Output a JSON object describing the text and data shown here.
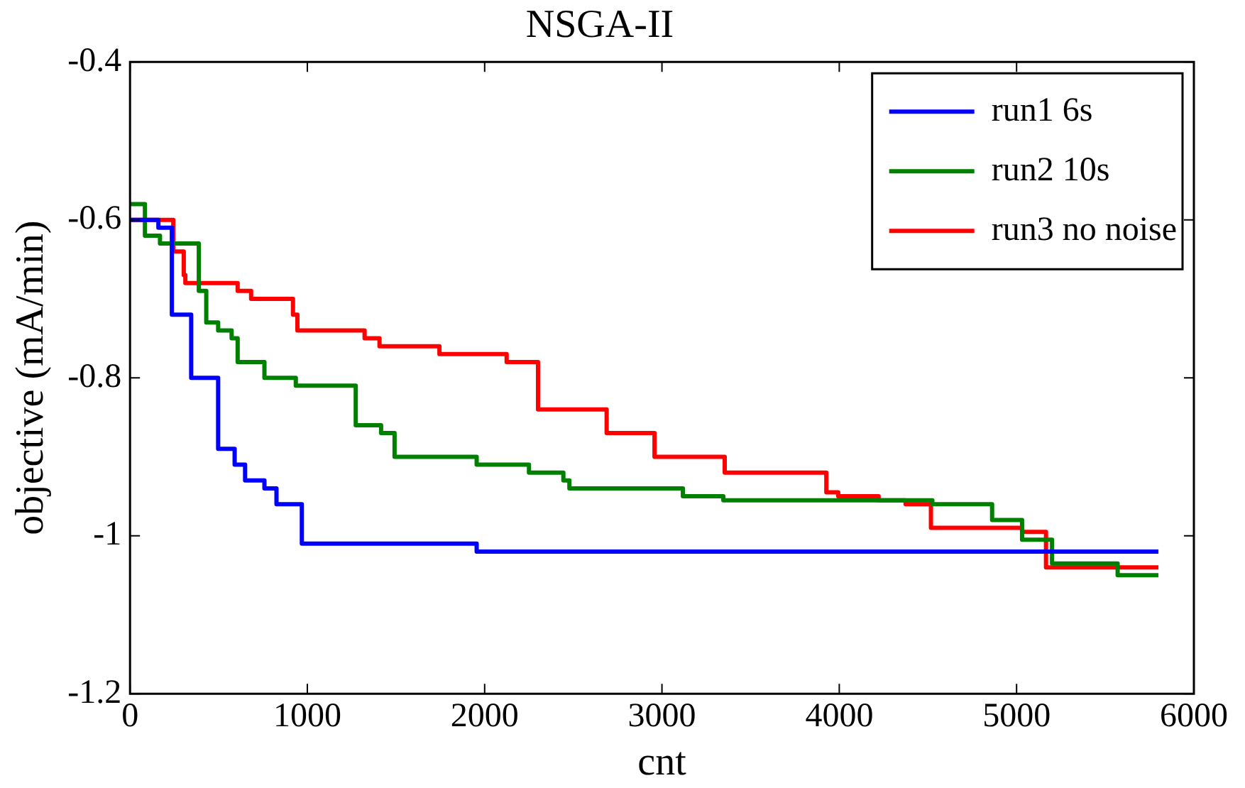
{
  "chart_data": {
    "type": "step",
    "title": "NSGA-II",
    "xlabel": "cnt",
    "ylabel": "objective (mA/min)",
    "xlim": [
      0,
      6000
    ],
    "xticks": [
      0,
      1000,
      2000,
      3000,
      4000,
      5000,
      6000
    ],
    "ylim": [
      -1.2,
      -0.4
    ],
    "yticks": [
      -1.2,
      -1,
      -0.8,
      -0.6,
      -0.4
    ],
    "grid": false,
    "legend": "top right",
    "marker": "none",
    "line_style": "solid",
    "series": [
      {
        "name": "run1 6s",
        "color": "#0000ff",
        "x": [
          0,
          160,
          236,
          345,
          497,
          590,
          649,
          758,
          826,
          969,
          1955,
          5800
        ],
        "values": [
          -0.6,
          -0.61,
          -0.72,
          -0.8,
          -0.89,
          -0.91,
          -0.93,
          -0.94,
          -0.96,
          -1.01,
          -1.02,
          -1.02
        ]
      },
      {
        "name": "run2 10s",
        "color": "#008000",
        "x": [
          0,
          84,
          169,
          219,
          388,
          430,
          497,
          573,
          607,
          758,
          935,
          1188,
          1273,
          1416,
          1492,
          1955,
          2250,
          2444,
          2478,
          2907,
          3118,
          3346,
          4525,
          4862,
          5031,
          5200,
          5570,
          5800
        ],
        "values": [
          -0.58,
          -0.62,
          -0.63,
          -0.63,
          -0.69,
          -0.73,
          -0.74,
          -0.75,
          -0.78,
          -0.8,
          -0.81,
          -0.81,
          -0.86,
          -0.87,
          -0.9,
          -0.91,
          -0.92,
          -0.93,
          -0.94,
          -0.94,
          -0.95,
          -0.955,
          -0.96,
          -0.98,
          -1.005,
          -1.035,
          -1.05,
          -1.05
        ]
      },
      {
        "name": "run3 no noise",
        "color": "#ff0000",
        "x": [
          0,
          244,
          303,
          312,
          607,
          683,
          792,
          919,
          944,
          1045,
          1323,
          1407,
          1551,
          1745,
          2124,
          2301,
          2688,
          2958,
          3354,
          3716,
          3927,
          3994,
          4096,
          4222,
          4374,
          4517,
          4736,
          5031,
          5166,
          5570,
          5800
        ],
        "values": [
          -0.6,
          -0.64,
          -0.67,
          -0.68,
          -0.69,
          -0.7,
          -0.7,
          -0.72,
          -0.74,
          -0.74,
          -0.75,
          -0.76,
          -0.76,
          -0.77,
          -0.78,
          -0.84,
          -0.87,
          -0.9,
          -0.92,
          -0.92,
          -0.945,
          -0.95,
          -0.95,
          -0.955,
          -0.96,
          -0.99,
          -0.99,
          -0.995,
          -1.04,
          -1.04,
          -1.04
        ]
      }
    ]
  }
}
